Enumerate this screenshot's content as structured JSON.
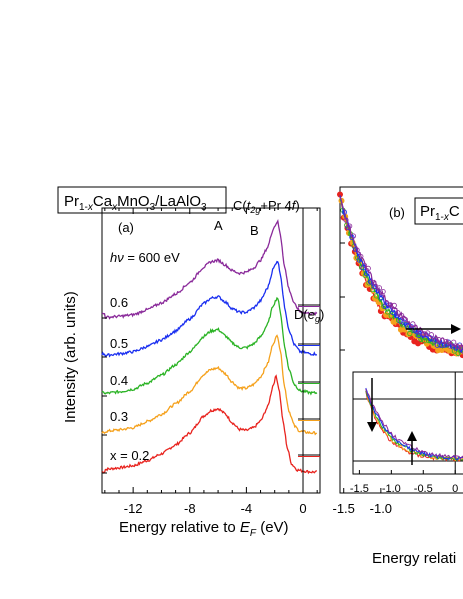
{
  "chart_data": [
    {
      "type": "line",
      "panel_label": "(a)",
      "title": "Pr1-xCaxMnO3/LaAlO3",
      "title_parts": [
        "Pr",
        "1-",
        "x",
        "Ca",
        "x",
        "MnO",
        "3",
        "/LaAlO",
        "3"
      ],
      "xlabel": "Energy relative to EF (eV)",
      "xlabel_parts": [
        "Energy relative to ",
        "E",
        "F",
        " (eV)"
      ],
      "ylabel": "Intensity (arb. units)",
      "xlim": [
        -14.2,
        1.2
      ],
      "xticks": [
        -12,
        -8,
        -4,
        0
      ],
      "photon_energy": "hν = 600 eV",
      "photon_parts": [
        "h",
        "ν",
        " = 600 eV"
      ],
      "peak_labels": {
        "A": "A",
        "B": "B",
        "C": "C(t2g+Pr 4f)",
        "C_parts": [
          "C(",
          "t",
          "2g",
          "+Pr 4",
          "f",
          ")"
        ],
        "D": "D(eg)",
        "D_parts": [
          "D(",
          "e",
          "g",
          ")"
        ]
      },
      "series": [
        {
          "name": "x = 0.2",
          "color": "#e8231e",
          "offset": 0,
          "points": [
            [
              -14,
              0.05
            ],
            [
              -13,
              0.08
            ],
            [
              -12,
              0.12
            ],
            [
              -11,
              0.22
            ],
            [
              -10,
              0.35
            ],
            [
              -9,
              0.52
            ],
            [
              -8,
              0.75
            ],
            [
              -7,
              1.08
            ],
            [
              -6.5,
              1.18
            ],
            [
              -6,
              1.22
            ],
            [
              -5.5,
              1.12
            ],
            [
              -5,
              0.95
            ],
            [
              -4.5,
              0.82
            ],
            [
              -4,
              0.8
            ],
            [
              -3.5,
              0.85
            ],
            [
              -3,
              0.98
            ],
            [
              -2.5,
              1.25
            ],
            [
              -2.1,
              1.68
            ],
            [
              -1.9,
              1.85
            ],
            [
              -1.7,
              1.6
            ],
            [
              -1.4,
              0.95
            ],
            [
              -1.1,
              0.45
            ],
            [
              -0.8,
              0.15
            ],
            [
              -0.4,
              0.04
            ],
            [
              0,
              0.02
            ],
            [
              0.6,
              0.0
            ]
          ]
        },
        {
          "name": "0.3",
          "color": "#f5a11c",
          "offset": 0.5,
          "points": [
            [
              -14,
              0.05
            ],
            [
              -13,
              0.08
            ],
            [
              -12,
              0.12
            ],
            [
              -11,
              0.24
            ],
            [
              -10,
              0.38
            ],
            [
              -9,
              0.58
            ],
            [
              -8,
              0.82
            ],
            [
              -7,
              1.15
            ],
            [
              -6.5,
              1.24
            ],
            [
              -6,
              1.27
            ],
            [
              -5.5,
              1.16
            ],
            [
              -5,
              1.0
            ],
            [
              -4.5,
              0.88
            ],
            [
              -4,
              0.88
            ],
            [
              -3.5,
              0.95
            ],
            [
              -3,
              1.1
            ],
            [
              -2.5,
              1.35
            ],
            [
              -2.1,
              1.75
            ],
            [
              -1.8,
              1.9
            ],
            [
              -1.6,
              1.6
            ],
            [
              -1.3,
              0.9
            ],
            [
              -1,
              0.45
            ],
            [
              -0.6,
              0.15
            ],
            [
              -0.2,
              0.05
            ],
            [
              0.6,
              0.02
            ]
          ]
        },
        {
          "name": "0.4",
          "color": "#2bb325",
          "offset": 1.0,
          "points": [
            [
              -14,
              0.05
            ],
            [
              -13,
              0.08
            ],
            [
              -12,
              0.13
            ],
            [
              -11,
              0.25
            ],
            [
              -10,
              0.4
            ],
            [
              -9,
              0.6
            ],
            [
              -8,
              0.85
            ],
            [
              -7,
              1.15
            ],
            [
              -6.5,
              1.25
            ],
            [
              -6,
              1.28
            ],
            [
              -5.5,
              1.16
            ],
            [
              -5,
              1.02
            ],
            [
              -4.5,
              0.93
            ],
            [
              -4,
              0.93
            ],
            [
              -3.5,
              1.0
            ],
            [
              -3,
              1.14
            ],
            [
              -2.5,
              1.38
            ],
            [
              -2.1,
              1.75
            ],
            [
              -1.8,
              1.9
            ],
            [
              -1.6,
              1.62
            ],
            [
              -1.3,
              0.95
            ],
            [
              -1,
              0.52
            ],
            [
              -0.6,
              0.22
            ],
            [
              -0.2,
              0.1
            ],
            [
              0.6,
              0.06
            ]
          ]
        },
        {
          "name": "0.5",
          "color": "#1a2ff0",
          "offset": 1.5,
          "points": [
            [
              -14,
              0.05
            ],
            [
              -13,
              0.08
            ],
            [
              -12,
              0.12
            ],
            [
              -11,
              0.22
            ],
            [
              -10,
              0.35
            ],
            [
              -9,
              0.52
            ],
            [
              -8,
              0.75
            ],
            [
              -7,
              1.05
            ],
            [
              -6.5,
              1.15
            ],
            [
              -6,
              1.18
            ],
            [
              -5.5,
              1.08
            ],
            [
              -5,
              0.95
            ],
            [
              -4.5,
              0.88
            ],
            [
              -4,
              0.88
            ],
            [
              -3.5,
              0.96
            ],
            [
              -3,
              1.1
            ],
            [
              -2.5,
              1.35
            ],
            [
              -2.1,
              1.72
            ],
            [
              -1.8,
              1.88
            ],
            [
              -1.6,
              1.62
            ],
            [
              -1.3,
              0.98
            ],
            [
              -1,
              0.55
            ],
            [
              -0.6,
              0.25
            ],
            [
              -0.2,
              0.12
            ],
            [
              0.6,
              0.08
            ]
          ]
        },
        {
          "name": "0.6",
          "color": "#8a2a9a",
          "offset": 2.0,
          "points": [
            [
              -14,
              0.05
            ],
            [
              -13,
              0.07
            ],
            [
              -12,
              0.1
            ],
            [
              -11,
              0.2
            ],
            [
              -10,
              0.33
            ],
            [
              -9,
              0.5
            ],
            [
              -8,
              0.72
            ],
            [
              -7,
              1.02
            ],
            [
              -6.5,
              1.12
            ],
            [
              -6,
              1.15
            ],
            [
              -5.5,
              1.06
            ],
            [
              -5,
              0.95
            ],
            [
              -4.5,
              0.9
            ],
            [
              -4,
              0.92
            ],
            [
              -3.5,
              1.0
            ],
            [
              -3,
              1.15
            ],
            [
              -2.5,
              1.4
            ],
            [
              -2.1,
              1.76
            ],
            [
              -1.8,
              1.9
            ],
            [
              -1.6,
              1.64
            ],
            [
              -1.3,
              1.02
            ],
            [
              -1,
              0.6
            ],
            [
              -0.6,
              0.3
            ],
            [
              -0.2,
              0.16
            ],
            [
              0.6,
              0.12
            ]
          ]
        }
      ]
    },
    {
      "type": "scatter",
      "panel_label": "(b)",
      "title": "Pr1-xC",
      "title_parts": [
        "Pr",
        "1-",
        "x",
        "C"
      ],
      "xlabel": "Energy relati",
      "xlim": [
        -1.55,
        0.2
      ],
      "xticks": [
        -1.5,
        -1.0
      ],
      "inset": {
        "xticks": [
          -1.5,
          -1.0,
          -0.5,
          0
        ],
        "xtick_labels": [
          "-1.5",
          "-1.0",
          "-0.5",
          "0"
        ]
      },
      "series_colors": [
        "#e8231e",
        "#f5a11c",
        "#2bb325",
        "#1a2ff0",
        "#8a2a9a"
      ]
    }
  ]
}
